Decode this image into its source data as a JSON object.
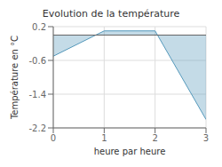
{
  "chart_data": {
    "type": "area",
    "title": "Evolution de la température",
    "xlabel": "heure par heure",
    "ylabel": "Température en °C",
    "x": [
      0,
      1,
      2,
      3
    ],
    "values": [
      -0.5,
      0.1,
      0.1,
      -2.0
    ],
    "xlim": [
      0,
      3
    ],
    "ylim": [
      -2.2,
      0.2
    ],
    "xticks": [
      0,
      1,
      2,
      3
    ],
    "yticks": [
      0.2,
      -0.6,
      -1.4,
      -2.2
    ],
    "color": "#5599bb",
    "grid": true
  }
}
